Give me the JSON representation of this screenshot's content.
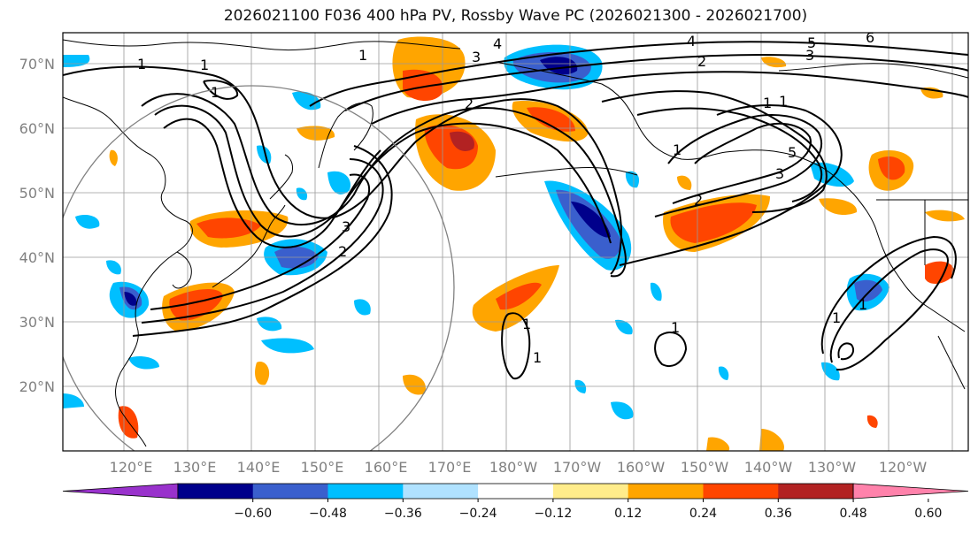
{
  "title": "2026021100 F036 400 hPa PV, Rossby Wave PC (2026021300 - 2026021700)",
  "lat_labels": [
    "70°N",
    "60°N",
    "50°N",
    "40°N",
    "30°N",
    "20°N"
  ],
  "lon_labels": [
    "120°E",
    "130°E",
    "140°E",
    "150°E",
    "160°E",
    "170°E",
    "180°W",
    "170°W",
    "160°W",
    "150°W",
    "140°W",
    "130°W",
    "120°W"
  ],
  "colorbar": {
    "colors": [
      "#9932cc",
      "#00008b",
      "#3a5fcd",
      "#00bfff",
      "#b0e2ff",
      "#ffffff",
      "#ffec8b",
      "#ffa500",
      "#ff4500",
      "#b22222",
      "#ff82ab"
    ],
    "tick_labels": [
      "−0.60",
      "−0.48",
      "−0.36",
      "−0.24",
      "−0.12",
      "0.12",
      "0.24",
      "0.36",
      "0.48",
      "0.60"
    ]
  },
  "contour_labels": [
    "1",
    "1",
    "1",
    "1",
    "2",
    "3",
    "4",
    "5",
    "6",
    "2",
    "1",
    "3",
    "1",
    "2",
    "3",
    "1",
    "4",
    "5",
    "3",
    "2",
    "1",
    "1",
    "1",
    "1",
    "1"
  ],
  "colors": {
    "grid": "#9a9a9a",
    "coast": "#000000",
    "contour": "#000000",
    "circle": "#808080",
    "axis_label": "#808080"
  }
}
